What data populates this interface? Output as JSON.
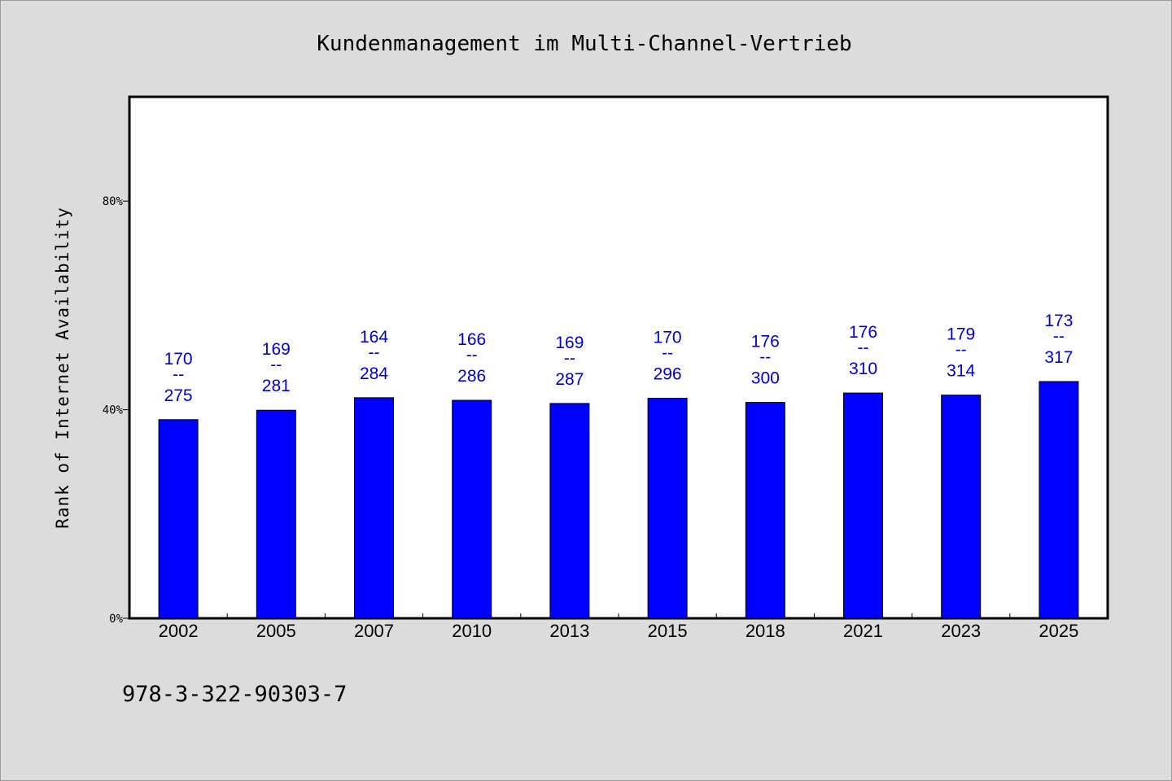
{
  "chart_data": {
    "type": "bar",
    "title": "Kundenmanagement im Multi-Channel-Vertrieb",
    "xlabel": "",
    "ylabel": "Rank of Internet Availability",
    "ylim": [
      0,
      100
    ],
    "yticks": [
      {
        "value": 0,
        "label": "0%"
      },
      {
        "value": 40,
        "label": "40%"
      },
      {
        "value": 80,
        "label": "80%"
      }
    ],
    "categories": [
      "2002",
      "2005",
      "2007",
      "2010",
      "2013",
      "2015",
      "2018",
      "2021",
      "2023",
      "2025"
    ],
    "values": [
      38.1,
      39.9,
      42.3,
      41.8,
      41.2,
      42.2,
      41.4,
      43.2,
      42.8,
      45.4
    ],
    "bar_labels": [
      {
        "top": "170",
        "sep": "--",
        "bottom": "275"
      },
      {
        "top": "169",
        "sep": "--",
        "bottom": "281"
      },
      {
        "top": "164",
        "sep": "--",
        "bottom": "284"
      },
      {
        "top": "166",
        "sep": "--",
        "bottom": "286"
      },
      {
        "top": "169",
        "sep": "--",
        "bottom": "287"
      },
      {
        "top": "170",
        "sep": "--",
        "bottom": "296"
      },
      {
        "top": "176",
        "sep": "--",
        "bottom": "300"
      },
      {
        "top": "176",
        "sep": "--",
        "bottom": "310"
      },
      {
        "top": "179",
        "sep": "--",
        "bottom": "314"
      },
      {
        "top": "173",
        "sep": "--",
        "bottom": "317"
      }
    ],
    "bar_color": "#0000ff",
    "label_color": "#0000cc",
    "grid": false,
    "legend": "none"
  },
  "footer": {
    "isbn": "978-3-322-90303-7"
  },
  "colors": {
    "background": "#dcdcdc",
    "plot_background": "#ffffff",
    "axis": "#000000"
  }
}
